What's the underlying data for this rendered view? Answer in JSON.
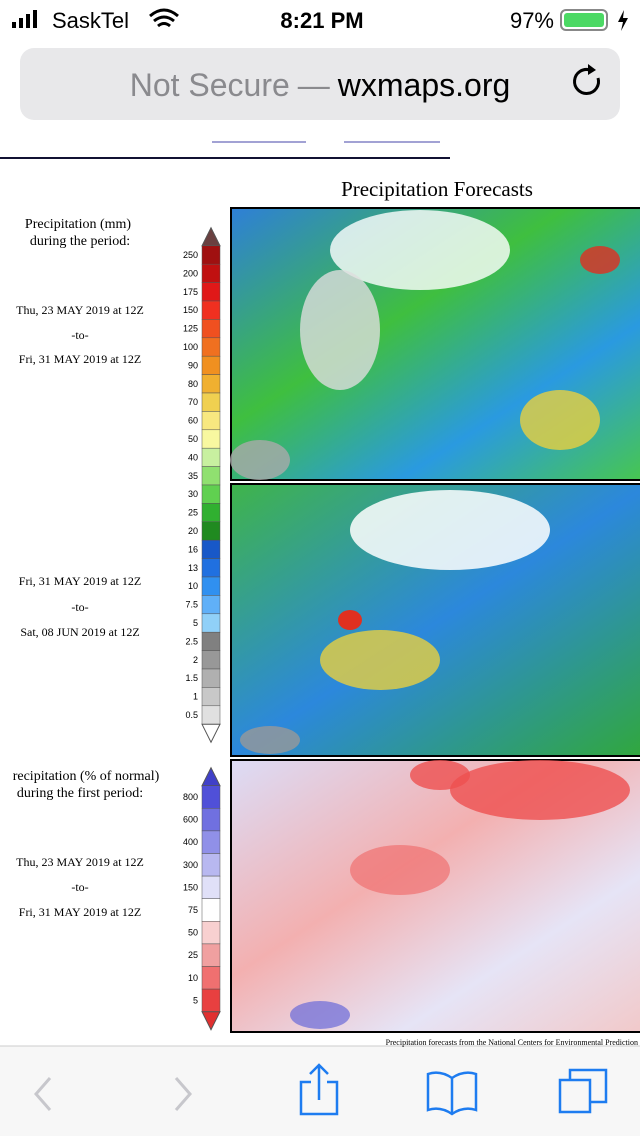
{
  "status_bar": {
    "carrier": "SaskTel",
    "time": "8:21 PM",
    "battery": "97%"
  },
  "address_bar": {
    "security": "Not Secure",
    "separator": "—",
    "domain": "wxmaps.org"
  },
  "page": {
    "title": "Precipitation Forecasts",
    "panel_1": {
      "heading": [
        "Precipitation (mm)",
        "during the period:"
      ],
      "start": "Thu, 23 MAY 2019 at 12Z",
      "to": "-to-",
      "end": "Fri, 31 MAY 2019 at 12Z"
    },
    "panel_2": {
      "start": "Fri, 31 MAY 2019 at 12Z",
      "to": "-to-",
      "end": "Sat, 08 JUN 2019 at 12Z"
    },
    "panel_3": {
      "heading": [
        "recipitation (% of normal)",
        "during the first period:"
      ],
      "start": "Thu, 23 MAY 2019 at 12Z",
      "to": "-to-",
      "end": "Fri, 31 MAY 2019 at 12Z"
    },
    "scale_mm": [
      "250",
      "200",
      "175",
      "150",
      "125",
      "100",
      "90",
      "80",
      "70",
      "60",
      "50",
      "40",
      "35",
      "30",
      "25",
      "20",
      "16",
      "13",
      "10",
      "7.5",
      "5",
      "2.5",
      "2",
      "1.5",
      "1",
      "0.5"
    ],
    "scale_pct": [
      "800",
      "600",
      "400",
      "300",
      "150",
      "75",
      "50",
      "25",
      "10",
      "5"
    ],
    "footer": "Precipitation forecasts from the National Centers for Environmental Prediction"
  }
}
